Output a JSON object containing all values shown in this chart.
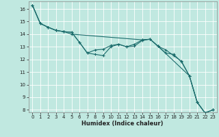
{
  "title": "",
  "xlabel": "Humidex (Indice chaleur)",
  "background_color": "#c0e8e0",
  "grid_color": "#ffffff",
  "line_color": "#1a6b6b",
  "xlim": [
    -0.5,
    23.5
  ],
  "ylim": [
    7.8,
    16.6
  ],
  "xticks": [
    0,
    1,
    2,
    3,
    4,
    5,
    6,
    7,
    8,
    9,
    10,
    11,
    12,
    13,
    14,
    15,
    16,
    17,
    18,
    19,
    20,
    21,
    22,
    23
  ],
  "yticks": [
    8,
    9,
    10,
    11,
    12,
    13,
    14,
    15,
    16
  ],
  "lines": [
    {
      "x": [
        0,
        1,
        2,
        3,
        4,
        5,
        6,
        7,
        8,
        9,
        10,
        11,
        12,
        13,
        14,
        15,
        16,
        17,
        18,
        19,
        20,
        21,
        22,
        23
      ],
      "y": [
        16.3,
        14.85,
        14.55,
        14.3,
        14.2,
        14.15,
        13.35,
        12.5,
        12.4,
        12.3,
        13.0,
        13.2,
        13.0,
        13.05,
        13.5,
        13.6,
        13.05,
        12.5,
        12.4,
        11.8,
        10.7,
        8.6,
        7.75,
        8.0
      ]
    },
    {
      "x": [
        0,
        1,
        2,
        3,
        4,
        5,
        6,
        7,
        8,
        9,
        10,
        11,
        12,
        13,
        14,
        15,
        16,
        17,
        18,
        19,
        20,
        21,
        22,
        23
      ],
      "y": [
        16.3,
        14.85,
        14.55,
        14.3,
        14.2,
        14.15,
        13.35,
        12.5,
        12.75,
        12.8,
        13.1,
        13.2,
        13.0,
        13.2,
        13.55,
        13.6,
        13.05,
        12.75,
        12.3,
        11.85,
        10.7,
        8.6,
        7.75,
        8.0
      ]
    },
    {
      "x": [
        0,
        1,
        2,
        3,
        4,
        5,
        14,
        15,
        16,
        20,
        21,
        22,
        23
      ],
      "y": [
        16.3,
        14.85,
        14.55,
        14.3,
        14.2,
        14.0,
        13.55,
        13.6,
        13.05,
        10.7,
        8.6,
        7.75,
        8.0
      ]
    }
  ]
}
